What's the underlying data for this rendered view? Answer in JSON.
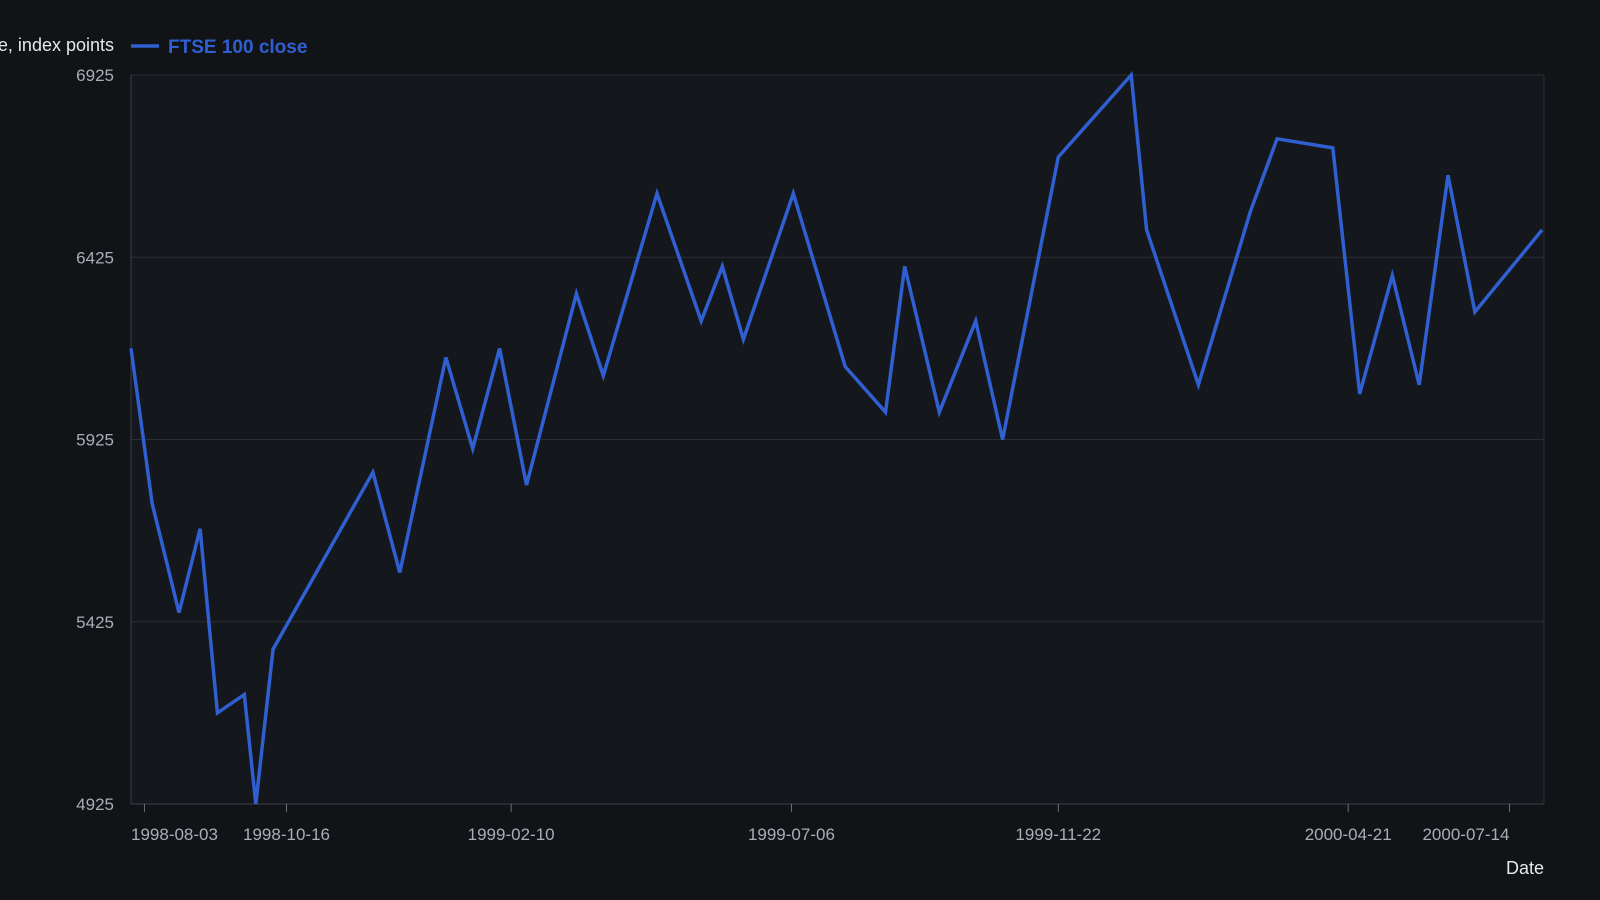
{
  "chart_data": {
    "type": "line",
    "title": "",
    "xlabel": "Date",
    "ylabel": "Price, index points",
    "ylim": [
      4925,
      6925
    ],
    "yticks": [
      4925,
      5425,
      5925,
      6425,
      6925
    ],
    "xlim": [
      "1998-07-27",
      "2000-08-01"
    ],
    "xticks": [
      "1998-08-03",
      "1998-10-16",
      "1999-02-10",
      "1999-07-06",
      "1999-11-22",
      "2000-04-21",
      "2000-07-14"
    ],
    "grid": true,
    "legend": "top-left",
    "series": [
      {
        "name": "FTSE 100 close",
        "color": "#2f5fd0",
        "points": [
          [
            "1998-07-27",
            6175
          ],
          [
            "1998-08-07",
            5750
          ],
          [
            "1998-08-21",
            5450
          ],
          [
            "1998-09-01",
            5680
          ],
          [
            "1998-09-10",
            5175
          ],
          [
            "1998-09-24",
            5225
          ],
          [
            "1998-09-30",
            4925
          ],
          [
            "1998-10-09",
            5350
          ],
          [
            "1998-11-30",
            5835
          ],
          [
            "1998-12-14",
            5560
          ],
          [
            "1999-01-07",
            6150
          ],
          [
            "1999-01-21",
            5900
          ],
          [
            "1999-02-04",
            6175
          ],
          [
            "1999-02-18",
            5800
          ],
          [
            "1999-03-16",
            6325
          ],
          [
            "1999-03-30",
            6100
          ],
          [
            "1999-04-27",
            6600
          ],
          [
            "1999-05-20",
            6250
          ],
          [
            "1999-05-31",
            6400
          ],
          [
            "1999-06-11",
            6200
          ],
          [
            "1999-07-07",
            6600
          ],
          [
            "1999-08-03",
            6125
          ],
          [
            "1999-08-24",
            6000
          ],
          [
            "1999-09-03",
            6400
          ],
          [
            "1999-09-21",
            6000
          ],
          [
            "1999-10-10",
            6250
          ],
          [
            "1999-10-24",
            5925
          ],
          [
            "1999-11-22",
            6700
          ],
          [
            "1999-12-30",
            6925
          ],
          [
            "2000-01-07",
            6500
          ],
          [
            "2000-02-03",
            6075
          ],
          [
            "2000-03-01",
            6550
          ],
          [
            "2000-03-15",
            6750
          ],
          [
            "2000-04-13",
            6725
          ],
          [
            "2000-04-27",
            6050
          ],
          [
            "2000-05-14",
            6375
          ],
          [
            "2000-05-28",
            6075
          ],
          [
            "2000-06-12",
            6650
          ],
          [
            "2000-06-26",
            6275
          ],
          [
            "2000-07-31",
            6500
          ]
        ]
      }
    ]
  }
}
